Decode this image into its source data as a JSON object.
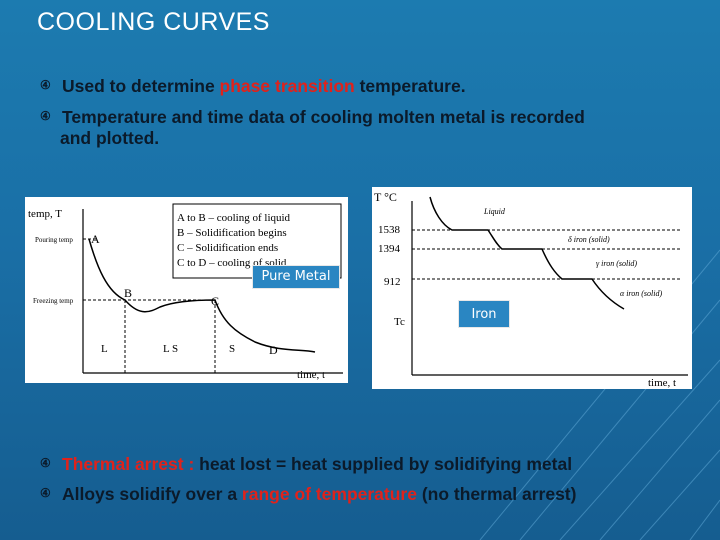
{
  "title": "COOLING CURVES",
  "bullets_top": [
    {
      "icon": "circled-4-icon",
      "pre": "Used to determine ",
      "highlight": "phase transition",
      "post": " temperature."
    },
    {
      "icon": "circled-4-icon",
      "line1": "Temperature and time data of cooling molten metal is recorded",
      "line2": "and plotted."
    }
  ],
  "bullets_bottom": [
    {
      "icon": "circled-4-icon",
      "highlight": "Thermal arrest : ",
      "post": "heat lost = heat supplied by solidifying metal"
    },
    {
      "icon": "circled-4-icon",
      "pre": "Alloys solidify over a ",
      "highlight": "range of temperature",
      "post": " (no thermal arrest)"
    }
  ],
  "colors": {
    "highlight": "#e0221b",
    "background": "#1a6fa6",
    "tag": "#2a86c2"
  },
  "pure_metal_chart": {
    "tag": "Pure Metal",
    "y_axis_label": "temp, T",
    "x_axis_label": "time, t",
    "pouring_label": "Pouring temp",
    "freezing_label": "Freezing temp",
    "points": {
      "a": "A",
      "b": "B",
      "c": "C",
      "d": "D"
    },
    "phases": {
      "l1": "L",
      "ls": "L S",
      "s": "S"
    },
    "legend": [
      "A to B – cooling of liquid",
      "B – Solidification begins",
      "C – Solidification ends",
      "C to D – cooling of solid"
    ]
  },
  "iron_chart": {
    "tag": "Iron",
    "y_axis_label": "T °C",
    "x_axis_label": "time, t",
    "temps": [
      "1538",
      "1394",
      "912"
    ],
    "tc_label": "Tc",
    "phases": [
      "Liquid",
      "δ iron (solid)",
      "γ iron (solid)",
      "α iron (solid)"
    ]
  }
}
